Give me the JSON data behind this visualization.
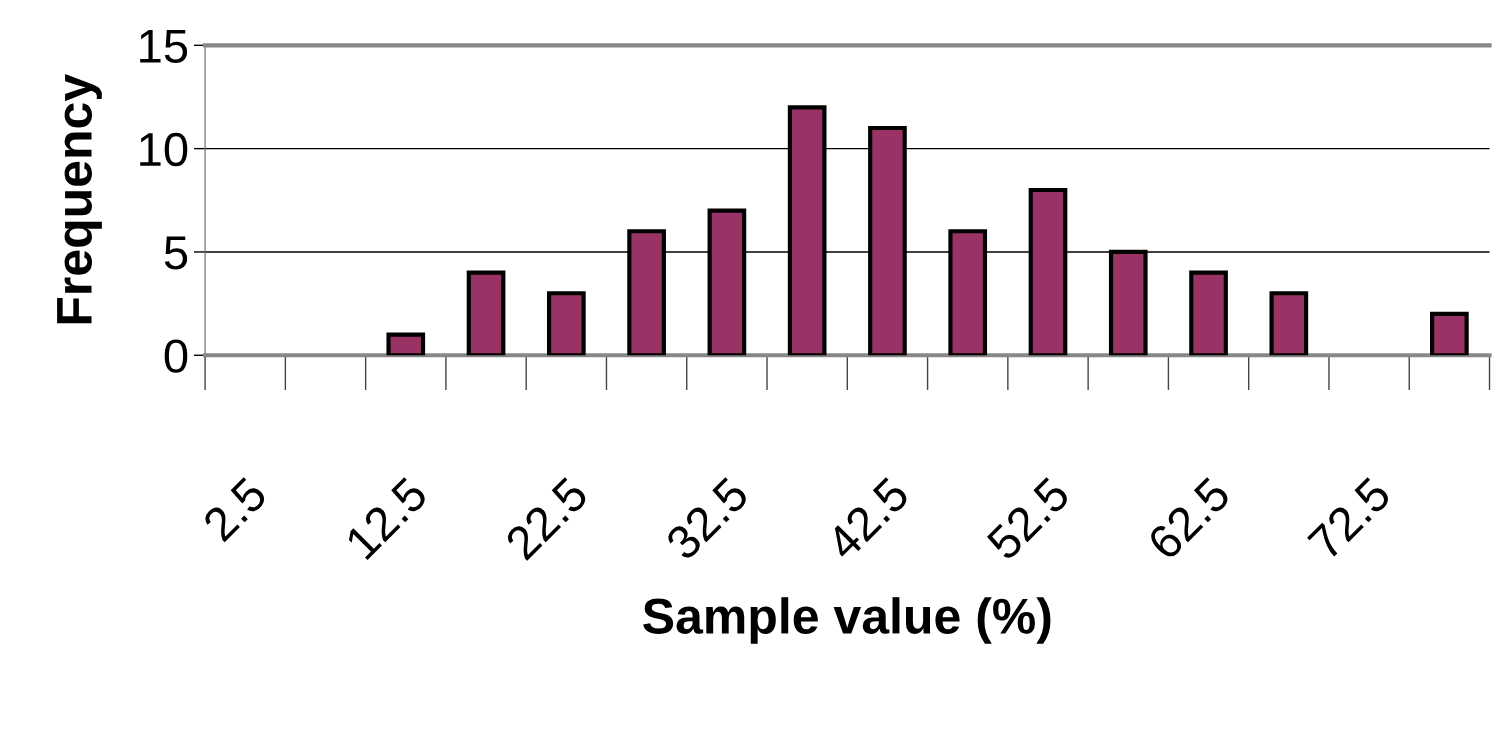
{
  "chart_data": {
    "type": "bar",
    "xlabel": "Sample value (%)",
    "ylabel": "Frequency",
    "categories": [
      "2.5",
      null,
      "12.5",
      null,
      "22.5",
      null,
      "32.5",
      null,
      "42.5",
      null,
      "52.5",
      null,
      "62.5",
      null,
      "72.5",
      null
    ],
    "values": [
      0,
      0,
      1,
      4,
      3,
      6,
      7,
      12,
      11,
      6,
      8,
      5,
      4,
      3,
      0,
      2
    ],
    "color": "#993366",
    "ylim": [
      0,
      15
    ],
    "yticks": [
      0,
      5,
      10,
      15
    ],
    "grid": "y",
    "legend": false
  }
}
